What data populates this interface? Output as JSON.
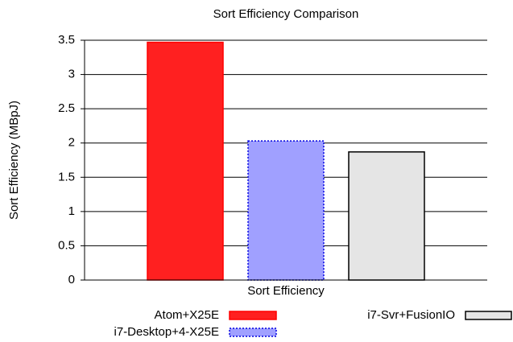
{
  "chart_data": {
    "type": "bar",
    "title": "Sort Efficiency Comparison",
    "xlabel": "Sort Efficiency",
    "ylabel": "Sort Efficiency (MBpJ)",
    "categories": [
      "Sort Efficiency"
    ],
    "series": [
      {
        "name": "Atom+X25E",
        "color": "#ff2020",
        "edgecolor": "#ff0000",
        "values": [
          3.47
        ]
      },
      {
        "name": "i7-Desktop+4-X25E",
        "color": "#a0a0ff",
        "edgecolor": "#0000e0",
        "values": [
          2.03
        ]
      },
      {
        "name": "i7-Svr+FusionIO",
        "color": "#e5e5e5",
        "edgecolor": "#000000",
        "values": [
          1.87
        ]
      }
    ],
    "ylim": [
      0,
      3.5
    ],
    "yticks": [
      0,
      0.5,
      1,
      1.5,
      2,
      2.5,
      3,
      3.5
    ],
    "grid": true
  }
}
